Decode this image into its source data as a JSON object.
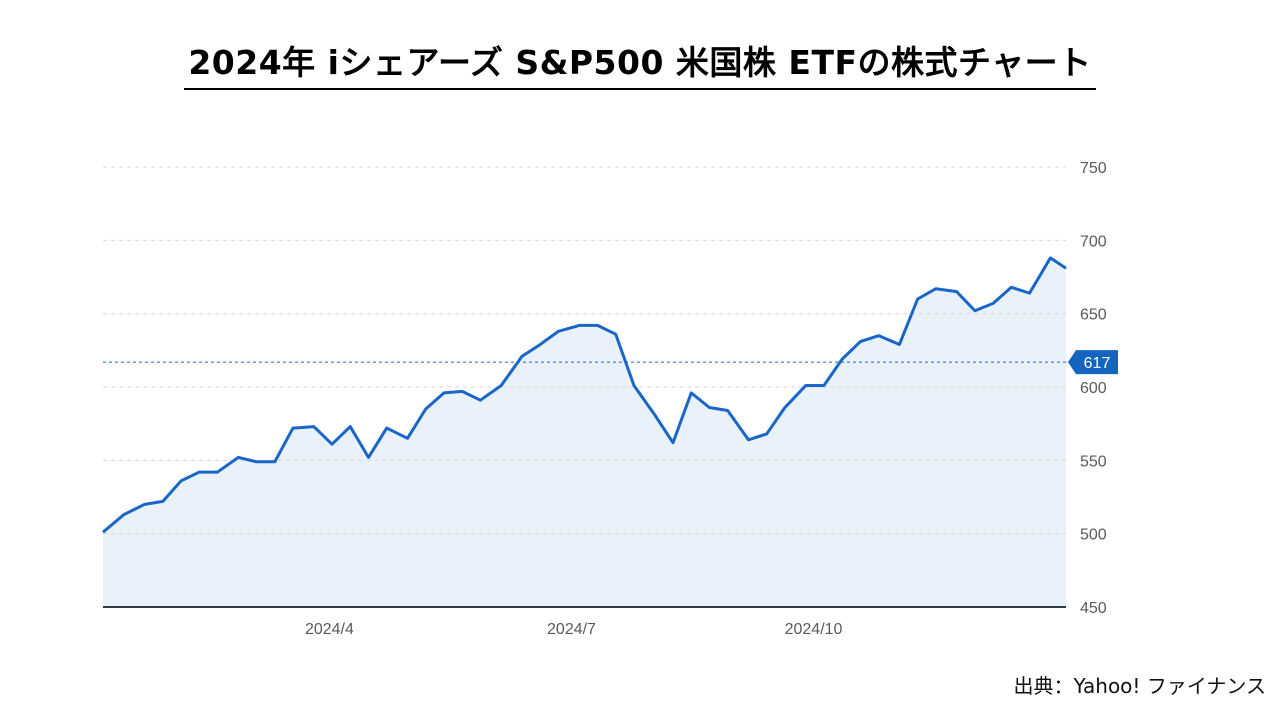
{
  "page": {
    "title": "2024年 iシェアーズ S&P500 米国株 ETFの株式チャート",
    "source": "出典：Yahoo! ファイナンス"
  },
  "colors": {
    "line": "#1a66c8",
    "fill": "#e9f2fb",
    "grid": "#d5d5d5",
    "baseline": "#2e3a44",
    "marker_bg": "#1565c0",
    "marker_text": "#ffffff",
    "axis_text": "#5a5a5a"
  },
  "chart_data": {
    "type": "area",
    "title": "",
    "xlabel": "",
    "ylabel": "",
    "ylim": [
      450,
      750
    ],
    "yticks": [
      450,
      500,
      550,
      600,
      650,
      700,
      750
    ],
    "y_axis_position": "right",
    "grid": "horizontal dashed",
    "xticks": [
      "2024/4",
      "2024/7",
      "2024/10"
    ],
    "x_tick_positions": [
      8.7,
      18,
      27.3
    ],
    "reference_line": {
      "value": 617,
      "label": "617"
    },
    "series": [
      {
        "x": [
          0,
          0.8,
          1.6,
          2.3,
          3,
          3.7,
          4.4,
          5.2,
          5.9,
          6.6,
          7.3,
          8.1,
          8.8,
          9.5,
          10.2,
          10.9,
          11.7,
          12.4,
          13.1,
          13.8,
          14.5,
          15.3,
          16.1,
          16.8,
          17.5,
          18.3,
          19,
          19.7,
          20.4,
          21.2,
          21.9,
          22.6,
          23.3,
          24,
          24.8,
          25.5,
          26.2,
          27,
          27.7,
          28.4,
          29.1,
          29.8,
          30.6,
          31.3,
          32,
          32.8,
          33.5,
          34.2,
          34.9,
          35.6,
          36.4,
          37
        ],
        "values": [
          501,
          513,
          520,
          522,
          536,
          542,
          542,
          552,
          549,
          549,
          572,
          573,
          561,
          573,
          552,
          572,
          565,
          585,
          596,
          597,
          591,
          601,
          621,
          629,
          638,
          642,
          642,
          636,
          601,
          581,
          562,
          596,
          586,
          584,
          564,
          568,
          586,
          601,
          601,
          619,
          631,
          635,
          629,
          660,
          667,
          665,
          652,
          657,
          668,
          664,
          688,
          681
        ]
      }
    ]
  }
}
